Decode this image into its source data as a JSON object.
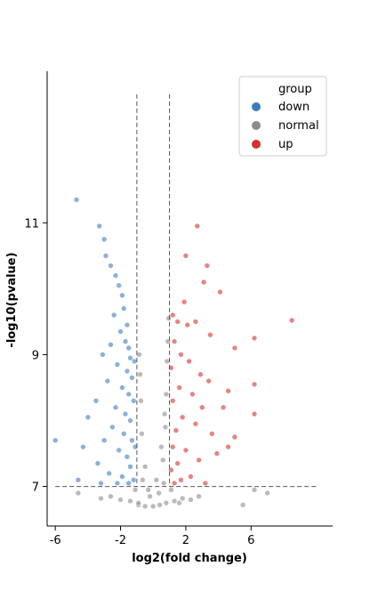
{
  "chart_data": {
    "type": "scatter",
    "title": "",
    "xlabel": "log2(fold change)",
    "ylabel": "-log10(pvalue)",
    "xlim": [
      -6.5,
      11.0
    ],
    "ylim": [
      6.4,
      13.3
    ],
    "xticks": [
      -6,
      -2,
      2,
      6
    ],
    "yticks": [
      7,
      9,
      11
    ],
    "thresholds": {
      "fold_change": [
        -1,
        1
      ],
      "pvalue": 7
    },
    "legend": {
      "title": "group",
      "position": "top-right"
    },
    "grid": false,
    "series": [
      {
        "name": "down",
        "color": "#3b7dbf",
        "points": [
          [
            -4.7,
            11.35
          ],
          [
            -3.3,
            10.95
          ],
          [
            -3.0,
            10.75
          ],
          [
            -2.9,
            10.5
          ],
          [
            -2.6,
            10.35
          ],
          [
            -2.3,
            10.2
          ],
          [
            -2.1,
            10.05
          ],
          [
            -1.9,
            9.9
          ],
          [
            -1.8,
            9.7
          ],
          [
            -2.4,
            9.6
          ],
          [
            -1.6,
            9.45
          ],
          [
            -2.0,
            9.35
          ],
          [
            -1.7,
            9.2
          ],
          [
            -1.5,
            9.1
          ],
          [
            -2.6,
            9.15
          ],
          [
            -3.1,
            9.0
          ],
          [
            -1.4,
            8.95
          ],
          [
            -2.2,
            8.85
          ],
          [
            -1.6,
            8.75
          ],
          [
            -1.3,
            8.65
          ],
          [
            -2.8,
            8.6
          ],
          [
            -1.9,
            8.5
          ],
          [
            -1.5,
            8.4
          ],
          [
            -3.5,
            8.3
          ],
          [
            -1.2,
            8.3
          ],
          [
            -2.3,
            8.2
          ],
          [
            -1.7,
            8.1
          ],
          [
            -4.0,
            8.05
          ],
          [
            -1.4,
            8.0
          ],
          [
            -2.5,
            7.9
          ],
          [
            -1.8,
            7.8
          ],
          [
            -3.0,
            7.7
          ],
          [
            -1.3,
            7.7
          ],
          [
            -4.3,
            7.6
          ],
          [
            -2.1,
            7.55
          ],
          [
            -1.6,
            7.45
          ],
          [
            -3.4,
            7.35
          ],
          [
            -1.4,
            7.3
          ],
          [
            -2.7,
            7.2
          ],
          [
            -1.9,
            7.15
          ],
          [
            -1.2,
            7.1
          ],
          [
            -4.6,
            7.1
          ],
          [
            -6.0,
            7.7
          ],
          [
            -3.2,
            7.05
          ],
          [
            -2.2,
            7.05
          ],
          [
            -1.5,
            7.05
          ],
          [
            -1.1,
            7.6
          ],
          [
            -1.15,
            8.9
          ]
        ]
      },
      {
        "name": "normal",
        "color": "#8c8c8c",
        "points": [
          [
            -0.9,
            6.72
          ],
          [
            -0.5,
            6.7
          ],
          [
            0.0,
            6.7
          ],
          [
            0.4,
            6.72
          ],
          [
            0.8,
            6.75
          ],
          [
            1.3,
            6.78
          ],
          [
            1.8,
            6.82
          ],
          [
            2.3,
            6.8
          ],
          [
            2.8,
            6.85
          ],
          [
            -1.4,
            6.78
          ],
          [
            -2.0,
            6.8
          ],
          [
            -2.6,
            6.85
          ],
          [
            -3.2,
            6.82
          ],
          [
            -4.6,
            6.9
          ],
          [
            5.5,
            6.72
          ],
          [
            7.0,
            6.9
          ],
          [
            6.2,
            6.95
          ],
          [
            -0.3,
            6.95
          ],
          [
            0.2,
            7.1
          ],
          [
            0.6,
            7.4
          ],
          [
            0.75,
            7.9
          ],
          [
            0.8,
            8.4
          ],
          [
            0.85,
            8.9
          ],
          [
            0.9,
            9.2
          ],
          [
            0.95,
            9.55
          ],
          [
            0.7,
            8.1
          ],
          [
            0.5,
            7.6
          ],
          [
            -0.5,
            7.3
          ],
          [
            -0.7,
            7.8
          ],
          [
            -0.75,
            8.3
          ],
          [
            -0.8,
            8.7
          ],
          [
            -0.85,
            9.0
          ],
          [
            -0.65,
            7.1
          ],
          [
            -0.2,
            6.85
          ],
          [
            0.35,
            6.9
          ],
          [
            1.1,
            6.95
          ],
          [
            -1.1,
            6.95
          ],
          [
            0.65,
            7.05
          ],
          [
            -0.9,
            6.75
          ],
          [
            1.6,
            6.75
          ]
        ]
      },
      {
        "name": "up",
        "color": "#d7302e",
        "points": [
          [
            2.7,
            10.95
          ],
          [
            2.0,
            10.5
          ],
          [
            3.3,
            10.35
          ],
          [
            3.1,
            10.1
          ],
          [
            4.1,
            9.95
          ],
          [
            1.2,
            9.6
          ],
          [
            1.5,
            9.5
          ],
          [
            2.1,
            9.45
          ],
          [
            2.6,
            9.5
          ],
          [
            8.5,
            9.52
          ],
          [
            6.2,
            9.25
          ],
          [
            5.0,
            9.1
          ],
          [
            1.3,
            9.2
          ],
          [
            1.7,
            9.0
          ],
          [
            2.2,
            8.9
          ],
          [
            2.9,
            8.7
          ],
          [
            3.4,
            8.6
          ],
          [
            1.1,
            8.8
          ],
          [
            1.6,
            8.5
          ],
          [
            2.4,
            8.4
          ],
          [
            1.2,
            8.3
          ],
          [
            3.0,
            8.2
          ],
          [
            4.3,
            8.2
          ],
          [
            6.2,
            8.1
          ],
          [
            1.8,
            8.05
          ],
          [
            2.6,
            7.95
          ],
          [
            1.4,
            7.85
          ],
          [
            3.6,
            7.8
          ],
          [
            1.2,
            7.6
          ],
          [
            2.0,
            7.55
          ],
          [
            2.8,
            7.4
          ],
          [
            1.5,
            7.35
          ],
          [
            4.6,
            7.6
          ],
          [
            5.0,
            7.75
          ],
          [
            3.9,
            7.5
          ],
          [
            1.1,
            7.25
          ],
          [
            2.3,
            7.15
          ],
          [
            1.7,
            7.1
          ],
          [
            3.2,
            7.05
          ],
          [
            1.3,
            7.05
          ],
          [
            6.2,
            8.55
          ],
          [
            3.5,
            9.3
          ],
          [
            1.9,
            9.8
          ],
          [
            4.6,
            8.45
          ]
        ]
      }
    ]
  }
}
